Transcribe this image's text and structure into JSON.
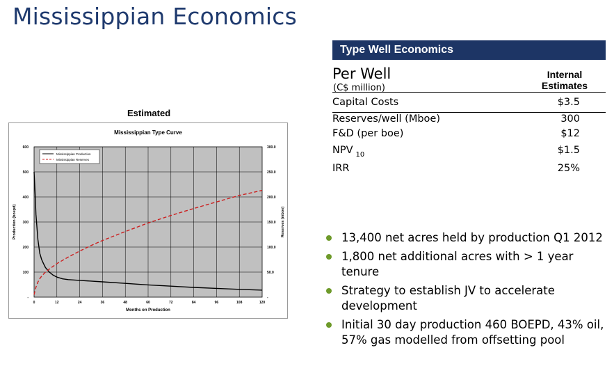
{
  "title": "Mississippian Economics",
  "table": {
    "header": "Type Well Economics",
    "per_well": "Per Well",
    "unit": "(C$ million)",
    "column_header_line1": "Internal",
    "column_header_line2": "Estimates",
    "rows": [
      {
        "label": "Capital Costs",
        "value": "$3.5"
      },
      {
        "label": "Reserves/well (Mboe)",
        "value": "300"
      },
      {
        "label": "F&D (per boe)",
        "value": "$12"
      },
      {
        "label": "NPV",
        "label_sub": "10",
        "value": "$1.5"
      },
      {
        "label": "IRR",
        "value": "25%"
      }
    ]
  },
  "chart_caption": "Estimated",
  "bullets": [
    "13,400 net acres held by production Q1 2012",
    "1,800 net additional acres with > 1 year tenure",
    "Strategy to establish JV to accelerate development",
    "Initial 30 day production 460 BOEPD, 43% oil, 57% gas modelled from offsetting pool"
  ],
  "colors": {
    "title": "#1f3a6e",
    "header_bg": "#1d3565",
    "bullet": "#6e9a2a",
    "plot_bg": "#c0c0c0",
    "production": "#000000",
    "reserves": "#cc1f1f"
  },
  "chart_data": {
    "type": "line",
    "title": "Mississippian Type Curve",
    "xlabel": "Months on Production",
    "ylabel": "Production (boepd)",
    "y2label": "Reserves (mboe)",
    "xlim": [
      0,
      120
    ],
    "ylim": [
      0,
      600
    ],
    "y2lim": [
      0,
      300
    ],
    "x_ticks": [
      "0",
      "12",
      "24",
      "36",
      "48",
      "60",
      "72",
      "84",
      "96",
      "108",
      "120"
    ],
    "y_ticks": [
      "-",
      "100",
      "200",
      "300",
      "400",
      "500",
      "600"
    ],
    "y2_ticks": [
      "-",
      "50.0",
      "100.0",
      "150.0",
      "200.0",
      "250.0",
      "300.0"
    ],
    "grid": true,
    "legend_position": "top-left",
    "series": [
      {
        "name": "Mississippian Production",
        "axis": "left",
        "style": "solid",
        "x": [
          0,
          0.5,
          1,
          2,
          3,
          4,
          5,
          6,
          8,
          10,
          12,
          15,
          18,
          24,
          36,
          48,
          60,
          72,
          84,
          96,
          108,
          120
        ],
        "y": [
          500,
          420,
          330,
          230,
          175,
          150,
          133,
          118,
          100,
          88,
          80,
          73,
          70,
          67,
          61,
          55,
          49,
          44,
          39,
          35,
          31,
          28
        ]
      },
      {
        "name": "Mississippian Reserves",
        "axis": "right",
        "style": "dashed",
        "x": [
          0,
          1,
          2,
          3,
          4,
          6,
          8,
          12,
          18,
          24,
          30,
          36,
          48,
          60,
          72,
          84,
          96,
          108,
          120
        ],
        "y": [
          5,
          20,
          30,
          37,
          42,
          50,
          56,
          67,
          80,
          92,
          103,
          113,
          131,
          148,
          163,
          177,
          190,
          203,
          213
        ]
      }
    ]
  }
}
